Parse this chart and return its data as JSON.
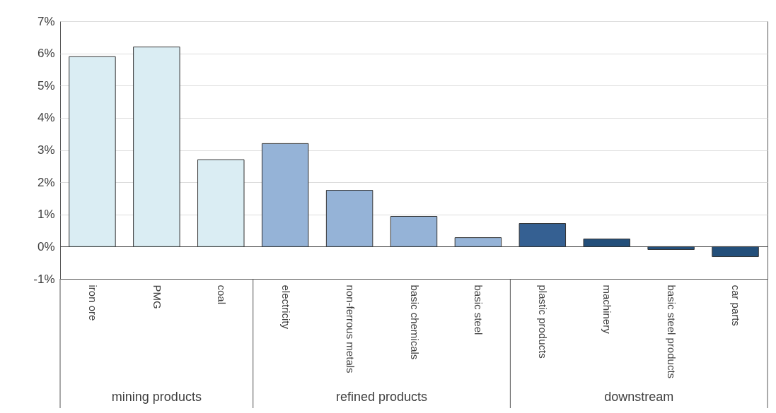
{
  "chart_data": {
    "type": "bar",
    "categories": [
      "iron ore",
      "PMG",
      "coal",
      "electricity",
      "non-ferrous metals",
      "basic chemicals",
      "basic steel",
      "plastic products",
      "machinery",
      "basic steel products",
      "car parts"
    ],
    "values": [
      5.9,
      6.2,
      2.7,
      3.2,
      1.75,
      0.94,
      0.28,
      0.72,
      0.24,
      -0.09,
      -0.31
    ],
    "colors": [
      "#daedf3",
      "#daedf3",
      "#daedf3",
      "#95b3d7",
      "#95b3d7",
      "#95b3d7",
      "#95b3d7",
      "#356092",
      "#234f7a",
      "#234f7a",
      "#234f7a"
    ],
    "annotations": [
      "mining products",
      "refined products",
      "downstream"
    ],
    "ylim": [
      -1,
      7
    ],
    "yticks": [
      {
        "value": -1,
        "label": "-1%"
      },
      {
        "value": 0,
        "label": "0%"
      },
      {
        "value": 1,
        "label": "1%"
      },
      {
        "value": 2,
        "label": "2%"
      },
      {
        "value": 3,
        "label": "3%"
      },
      {
        "value": 4,
        "label": "4%"
      },
      {
        "value": 5,
        "label": "5%"
      },
      {
        "value": 6,
        "label": "6%"
      },
      {
        "value": 7,
        "label": "7%"
      }
    ],
    "grid": "y"
  }
}
